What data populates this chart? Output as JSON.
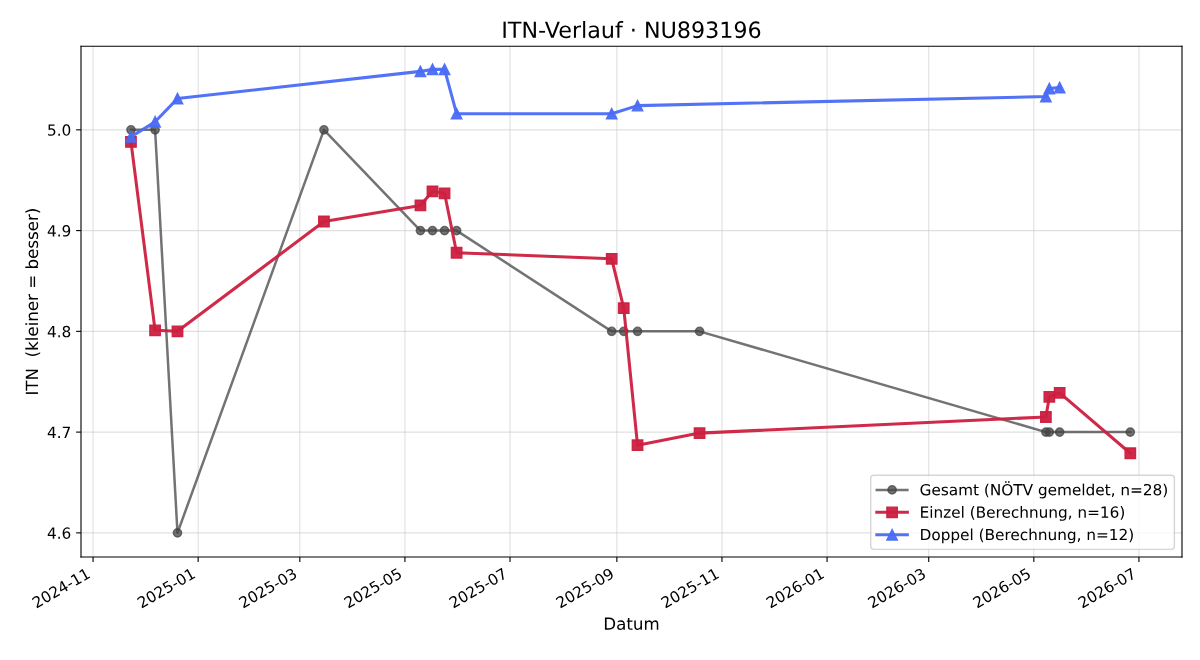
{
  "chart_data": {
    "type": "line",
    "title": "ITN-Verlauf · NU893196",
    "xlabel": "Datum",
    "ylabel": "ITN  (kleiner = besser)",
    "x": [
      "2024-11-23",
      "2024-12-07",
      "2024-12-20",
      "2025-03-15",
      "2025-05-10",
      "2025-05-17",
      "2025-05-24",
      "2025-05-31",
      "2025-08-29",
      "2025-09-05",
      "2025-09-13",
      "2025-10-19",
      "2026-05-08",
      "2026-05-10",
      "2026-05-16",
      "2026-06-26"
    ],
    "series": [
      {
        "name": "Gesamt (NÖTV gemeldet, n=28)",
        "color": "#444444",
        "marker": "circle",
        "values": [
          5.0,
          5.0,
          4.6,
          5.0,
          4.9,
          4.9,
          4.9,
          4.9,
          4.8,
          4.8,
          4.8,
          4.8,
          4.7,
          4.7,
          4.7,
          4.7
        ]
      },
      {
        "name": "Einzel (Berechnung, n=16)",
        "color": "#cc1f3f",
        "marker": "square",
        "values": [
          4.988,
          4.801,
          4.8,
          4.909,
          4.925,
          4.939,
          4.937,
          4.878,
          4.872,
          4.823,
          4.687,
          4.699,
          4.715,
          4.735,
          4.739,
          4.679
        ]
      },
      {
        "name": "Doppel (Berechnung, n=12)",
        "color": "#4a6cf7",
        "marker": "triangle",
        "x": [
          "2024-11-23",
          "2024-12-07",
          "2024-12-20",
          "2025-05-10",
          "2025-05-17",
          "2025-05-24",
          "2025-05-31",
          "2025-08-29",
          "2025-09-13",
          "2026-05-08",
          "2026-05-10",
          "2026-05-16"
        ],
        "values": [
          4.993,
          5.008,
          5.031,
          5.058,
          5.06,
          5.06,
          5.016,
          5.016,
          5.024,
          5.033,
          5.041,
          5.042
        ]
      }
    ],
    "xlim": [
      "2024-10-25",
      "2026-07-26"
    ],
    "xticks": [
      {
        "value": "2024-11-01",
        "label": "2024-11"
      },
      {
        "value": "2025-01-01",
        "label": "2025-01"
      },
      {
        "value": "2025-03-01",
        "label": "2025-03"
      },
      {
        "value": "2025-05-01",
        "label": "2025-05"
      },
      {
        "value": "2025-07-01",
        "label": "2025-07"
      },
      {
        "value": "2025-09-01",
        "label": "2025-09"
      },
      {
        "value": "2025-11-01",
        "label": "2025-11"
      },
      {
        "value": "2026-01-01",
        "label": "2026-01"
      },
      {
        "value": "2026-03-01",
        "label": "2026-03"
      },
      {
        "value": "2026-05-01",
        "label": "2026-05"
      },
      {
        "value": "2026-07-01",
        "label": "2026-07"
      }
    ],
    "ylim": [
      4.576,
      5.083
    ],
    "yticks": [
      4.6,
      4.7,
      4.8,
      4.9,
      {
        "value": 5,
        "label": "5.0"
      }
    ],
    "grid": true,
    "legend": "bottom right",
    "line_style": "solid"
  }
}
